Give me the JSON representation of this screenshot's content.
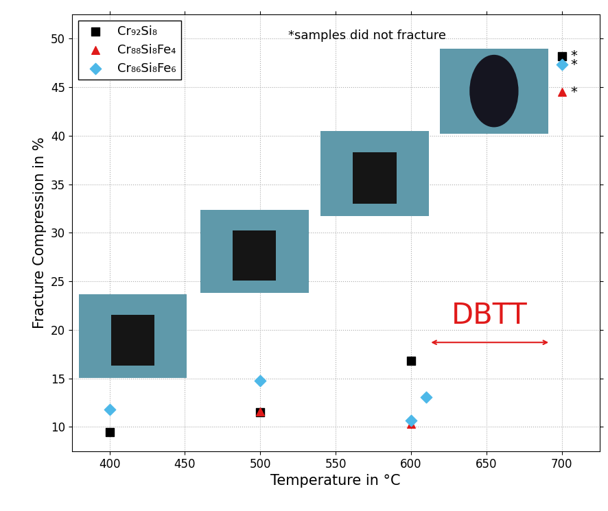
{
  "chart_data": {
    "type": "scatter",
    "x_label": "Temperature in °C",
    "y_label": "Fracture Compression in %",
    "xlim": [
      375,
      725
    ],
    "xticks": [
      400,
      450,
      500,
      550,
      600,
      650,
      700
    ],
    "ylim": [
      7.5,
      52.5
    ],
    "yticks": [
      10,
      15,
      20,
      25,
      30,
      35,
      40,
      45,
      50
    ],
    "grid": true,
    "legend": "upper left",
    "annotations": [
      {
        "text": "*samples did not fracture"
      },
      {
        "text": "DBTT"
      }
    ],
    "series": [
      {
        "name": "Cr₉₂Si₈",
        "color": "#000000",
        "marker": "square",
        "x": [
          400,
          500,
          600,
          700
        ],
        "values": [
          9.5,
          11.5,
          16.8,
          48.2
        ],
        "value_labels": [
          null,
          null,
          null,
          "*"
        ]
      },
      {
        "name": "Cr₈₈Si₈Fe₄",
        "color": "#e01a1a",
        "marker": "triangle",
        "x": [
          500,
          600,
          700
        ],
        "values": [
          11.6,
          10.3,
          44.5
        ],
        "value_labels": [
          null,
          null,
          "*"
        ]
      },
      {
        "name": "Cr₈₆Si₈Fe₆",
        "color": "#4db8e8",
        "marker": "diamond",
        "x": [
          400,
          500,
          600,
          610,
          700
        ],
        "values": [
          11.8,
          14.8,
          10.7,
          13.1,
          47.3
        ],
        "value_labels": [
          null,
          null,
          null,
          null,
          "*"
        ]
      }
    ]
  }
}
